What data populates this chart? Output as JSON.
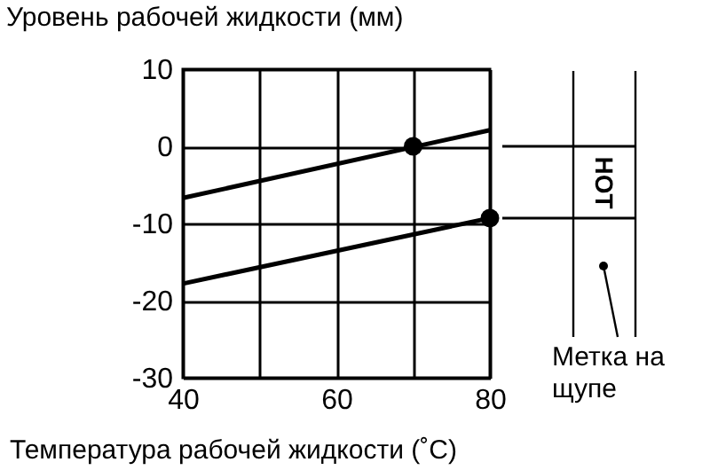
{
  "chart_data": {
    "type": "line",
    "xlabel": "Температура рабочей жидкости (˚C)",
    "ylabel": "Уровень рабочей жидкости (мм)",
    "xlim": [
      40,
      80
    ],
    "xticks": [
      40,
      {
        "value": 50,
        "label": null
      },
      60,
      {
        "value": 70,
        "label": null
      },
      80
    ],
    "ylim": [
      -30,
      10
    ],
    "yticks": [
      -30,
      -20,
      -10,
      0,
      10
    ],
    "grid": true,
    "series": [
      {
        "type": "line",
        "color": "#000000",
        "x": [
          40,
          80
        ],
        "values": [
          -6.7,
          2.1
        ],
        "marker": "none"
      },
      {
        "type": "line",
        "color": "#000000",
        "x": [
          40,
          80
        ],
        "values": [
          -17.8,
          -9.3
        ],
        "marker": "none"
      },
      {
        "type": "scatter",
        "color": "#000000",
        "x": [
          70,
          80
        ],
        "values": [
          0,
          -9.3
        ],
        "marker": "circle"
      }
    ],
    "annotations": [
      "HOT",
      "Метка на щупе"
    ]
  }
}
